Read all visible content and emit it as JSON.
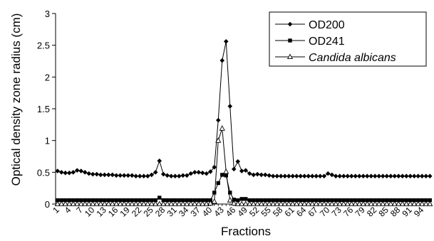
{
  "chart_data": {
    "type": "line",
    "xlabel": "Fractions",
    "ylabel": "Optical density zone radius (cm)",
    "ylim": [
      0,
      3
    ],
    "yticks": [
      "0",
      "0.5",
      "1",
      "1.5",
      "2",
      "2.5",
      "3"
    ],
    "xlim": [
      1,
      96
    ],
    "xticks": [
      "1",
      "4",
      "7",
      "10",
      "13",
      "16",
      "19",
      "22",
      "25",
      "28",
      "31",
      "34",
      "37",
      "40",
      "43",
      "46",
      "49",
      "52",
      "55",
      "58",
      "61",
      "64",
      "67",
      "70",
      "73",
      "76",
      "79",
      "82",
      "85",
      "88",
      "91",
      "94"
    ],
    "legend_position": "top-right",
    "grid": false,
    "series": [
      {
        "name": "OD200",
        "marker": "diamond",
        "color": "#000000",
        "default": 0.44,
        "points": [
          [
            1,
            0.52
          ],
          [
            2,
            0.5
          ],
          [
            3,
            0.49
          ],
          [
            4,
            0.49
          ],
          [
            5,
            0.5
          ],
          [
            6,
            0.53
          ],
          [
            7,
            0.52
          ],
          [
            8,
            0.5
          ],
          [
            9,
            0.48
          ],
          [
            10,
            0.47
          ],
          [
            11,
            0.47
          ],
          [
            12,
            0.46
          ],
          [
            13,
            0.46
          ],
          [
            14,
            0.46
          ],
          [
            15,
            0.46
          ],
          [
            16,
            0.45
          ],
          [
            17,
            0.45
          ],
          [
            18,
            0.45
          ],
          [
            19,
            0.45
          ],
          [
            20,
            0.45
          ],
          [
            21,
            0.44
          ],
          [
            22,
            0.44
          ],
          [
            23,
            0.44
          ],
          [
            24,
            0.44
          ],
          [
            25,
            0.46
          ],
          [
            26,
            0.5
          ],
          [
            27,
            0.68
          ],
          [
            28,
            0.47
          ],
          [
            29,
            0.45
          ],
          [
            30,
            0.44
          ],
          [
            31,
            0.44
          ],
          [
            32,
            0.44
          ],
          [
            33,
            0.45
          ],
          [
            34,
            0.45
          ],
          [
            35,
            0.48
          ],
          [
            36,
            0.5
          ],
          [
            37,
            0.5
          ],
          [
            38,
            0.49
          ],
          [
            39,
            0.48
          ],
          [
            40,
            0.51
          ],
          [
            41,
            0.58
          ],
          [
            42,
            1.32
          ],
          [
            43,
            2.26
          ],
          [
            44,
            2.56
          ],
          [
            45,
            1.54
          ],
          [
            46,
            0.55
          ],
          [
            47,
            0.67
          ],
          [
            48,
            0.52
          ],
          [
            49,
            0.53
          ],
          [
            50,
            0.48
          ],
          [
            51,
            0.46
          ],
          [
            52,
            0.47
          ],
          [
            53,
            0.46
          ],
          [
            54,
            0.46
          ],
          [
            55,
            0.45
          ],
          [
            70,
            0.48
          ],
          [
            71,
            0.46
          ]
        ]
      },
      {
        "name": "OD241",
        "marker": "square",
        "color": "#000000",
        "default": 0.06,
        "points": [
          [
            27,
            0.1
          ],
          [
            41,
            0.18
          ],
          [
            42,
            0.33
          ],
          [
            43,
            0.46
          ],
          [
            44,
            0.45
          ],
          [
            45,
            0.18
          ],
          [
            46,
            0.07
          ],
          [
            47,
            0.06
          ],
          [
            48,
            0.08
          ],
          [
            49,
            0.08
          ]
        ]
      },
      {
        "name": "Candida albicans",
        "marker": "triangle",
        "color": "#000000",
        "default": 0,
        "points": [
          [
            40,
            0.01
          ],
          [
            41,
            0.04
          ],
          [
            42,
            1.0
          ],
          [
            43,
            1.19
          ],
          [
            44,
            0.51
          ],
          [
            45,
            0.06
          ],
          [
            46,
            0.01
          ]
        ]
      }
    ]
  }
}
